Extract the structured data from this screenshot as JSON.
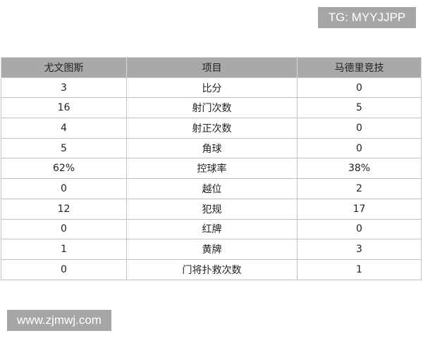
{
  "watermark_top": "TG: MYYJJPP",
  "watermark_bottom": "www.zjmwj.com",
  "table": {
    "headers": [
      "尤文图斯",
      "项目",
      "马德里竞技"
    ],
    "rows": [
      [
        "3",
        "比分",
        "0"
      ],
      [
        "16",
        "射门次数",
        "5"
      ],
      [
        "4",
        "射正次数",
        "0"
      ],
      [
        "5",
        "角球",
        "0"
      ],
      [
        "62%",
        "控球率",
        "38%"
      ],
      [
        "0",
        "越位",
        "2"
      ],
      [
        "12",
        "犯规",
        "17"
      ],
      [
        "0",
        "红牌",
        "0"
      ],
      [
        "1",
        "黄牌",
        "3"
      ],
      [
        "0",
        "门将扑救次数",
        "1"
      ]
    ]
  }
}
